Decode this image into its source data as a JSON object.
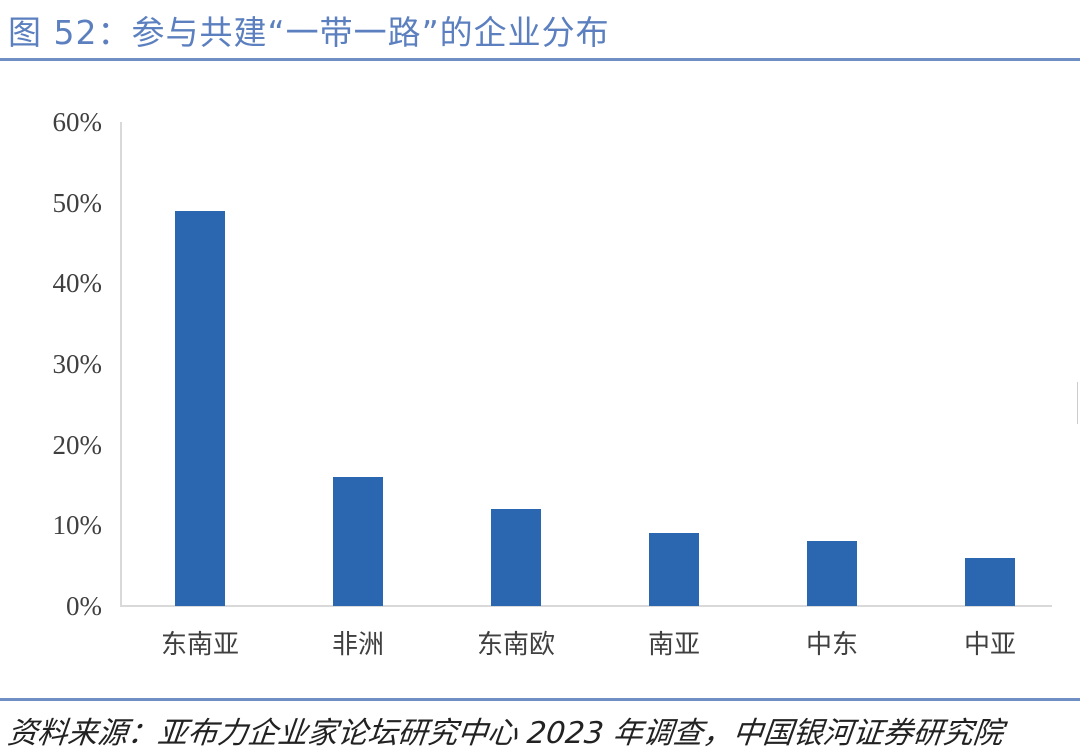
{
  "header": {
    "title": "图 52：参与共建“一带一路”的企业分布"
  },
  "footer": {
    "source": "资料来源：亚布力企业家论坛研究中心 2023 年调查，中国银河证券研究院"
  },
  "colors": {
    "bar": "#2b66b1",
    "rule": "#6f8fc4",
    "axis": "#d9d9d9",
    "title": "#5b7fbf"
  },
  "chart_data": {
    "type": "bar",
    "title": "参与共建“一带一路”的企业分布",
    "categories": [
      "东南亚",
      "非洲",
      "东南欧",
      "南亚",
      "中东",
      "中亚"
    ],
    "values": [
      49,
      16,
      12,
      9,
      8,
      6
    ],
    "unit": "%",
    "xlabel": "",
    "ylabel": "",
    "ylim": [
      0,
      60
    ],
    "yticks": [
      "0%",
      "10%",
      "20%",
      "30%",
      "40%",
      "50%",
      "60%"
    ],
    "grid": false,
    "legend": null
  }
}
